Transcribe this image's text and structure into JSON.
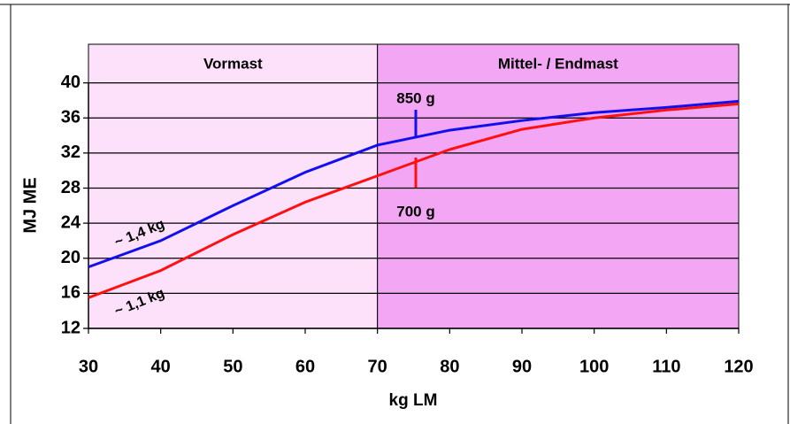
{
  "chart_data": {
    "type": "line",
    "xlabel": "kg LM",
    "ylabel": "MJ ME",
    "x": [
      30,
      40,
      50,
      60,
      70,
      80,
      90,
      100,
      110,
      120
    ],
    "series": [
      {
        "name": "850 g",
        "color": "#1010ee",
        "values": [
          19,
          22,
          26,
          29.8,
          32.9,
          34.6,
          35.7,
          36.6,
          37.2,
          37.9
        ]
      },
      {
        "name": "700 g",
        "color": "#ff1010",
        "values": [
          15.5,
          18.6,
          22.7,
          26.4,
          29.4,
          32.4,
          34.7,
          36.0,
          36.9,
          37.6
        ]
      }
    ],
    "regions": [
      {
        "label": "Vormast",
        "x": [
          30,
          70
        ],
        "color": "#fde0fa"
      },
      {
        "label": "Mittel- / Endmast",
        "x": [
          70,
          120
        ],
        "color": "#f3a6f3"
      }
    ],
    "annotations": [
      "~ 1,4 kg",
      "~ 1,1 kg"
    ],
    "xlim": [
      30,
      120
    ],
    "ylim": [
      12,
      44.4
    ],
    "xticks": [
      30,
      40,
      50,
      60,
      70,
      80,
      90,
      100,
      110,
      120
    ],
    "yticks": [
      12,
      16,
      20,
      24,
      28,
      32,
      36,
      40
    ],
    "grid": true
  }
}
